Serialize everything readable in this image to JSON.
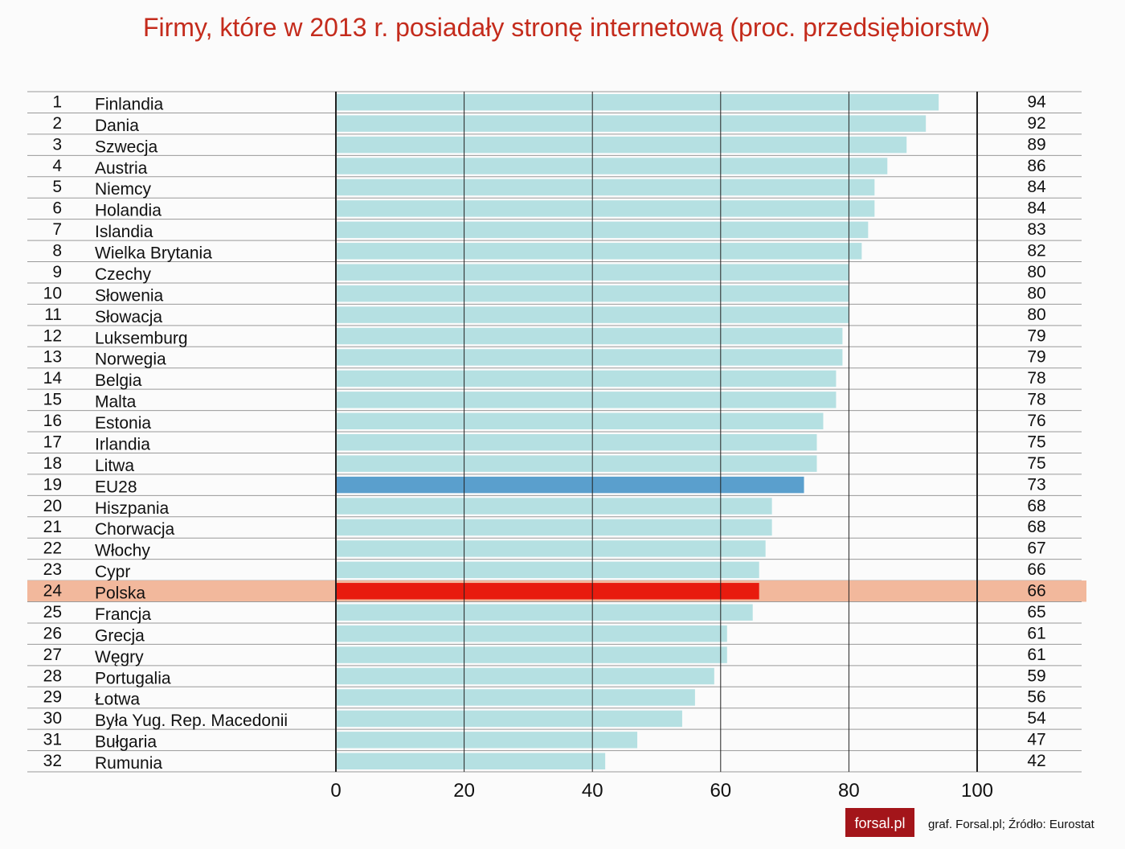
{
  "chart_data": {
    "type": "bar",
    "orientation": "horizontal",
    "title": "Firmy, które w 2013 r. posiadały stronę internetową (proc. przedsiębiorstw)",
    "ranks": [
      1,
      2,
      3,
      4,
      5,
      6,
      7,
      8,
      9,
      10,
      11,
      12,
      13,
      14,
      15,
      16,
      17,
      18,
      19,
      20,
      21,
      22,
      23,
      24,
      25,
      26,
      27,
      28,
      29,
      30,
      31,
      32
    ],
    "categories": [
      "Finlandia",
      "Dania",
      "Szwecja",
      "Austria",
      "Niemcy",
      "Holandia",
      "Islandia",
      "Wielka Brytania",
      "Czechy",
      "Słowenia",
      "Słowacja",
      "Luksemburg",
      "Norwegia",
      "Belgia",
      "Malta",
      "Estonia",
      "Irlandia",
      "Litwa",
      "EU28",
      "Hiszpania",
      "Chorwacja",
      "Włochy",
      "Cypr",
      "Polska",
      "Francja",
      "Grecja",
      "Węgry",
      "Portugalia",
      "Łotwa",
      "Była Yug. Rep. Macedonii",
      "Bułgaria",
      "Rumunia"
    ],
    "values": [
      94,
      92,
      89,
      86,
      84,
      84,
      83,
      82,
      80,
      80,
      80,
      79,
      79,
      78,
      78,
      76,
      75,
      75,
      73,
      68,
      68,
      67,
      66,
      66,
      65,
      61,
      61,
      59,
      56,
      54,
      47,
      42
    ],
    "colors": [
      "#b5e0e2",
      "#b5e0e2",
      "#b5e0e2",
      "#b5e0e2",
      "#b5e0e2",
      "#b5e0e2",
      "#b5e0e2",
      "#b5e0e2",
      "#b5e0e2",
      "#b5e0e2",
      "#b5e0e2",
      "#b5e0e2",
      "#b5e0e2",
      "#b5e0e2",
      "#b5e0e2",
      "#b5e0e2",
      "#b5e0e2",
      "#b5e0e2",
      "#5a9fcd",
      "#b5e0e2",
      "#b5e0e2",
      "#b5e0e2",
      "#b5e0e2",
      "#e81b0e",
      "#b5e0e2",
      "#b5e0e2",
      "#b5e0e2",
      "#b5e0e2",
      "#b5e0e2",
      "#b5e0e2",
      "#b5e0e2",
      "#b5e0e2"
    ],
    "highlight_category": "Polska",
    "highlight_color": "#f2b89c",
    "xlim": [
      0,
      100
    ],
    "xticks": [
      0,
      20,
      40,
      60,
      80,
      100
    ],
    "grid": true,
    "logo": "forsal.pl",
    "source": "graf. Forsal.pl; Źródło: Eurostat"
  }
}
